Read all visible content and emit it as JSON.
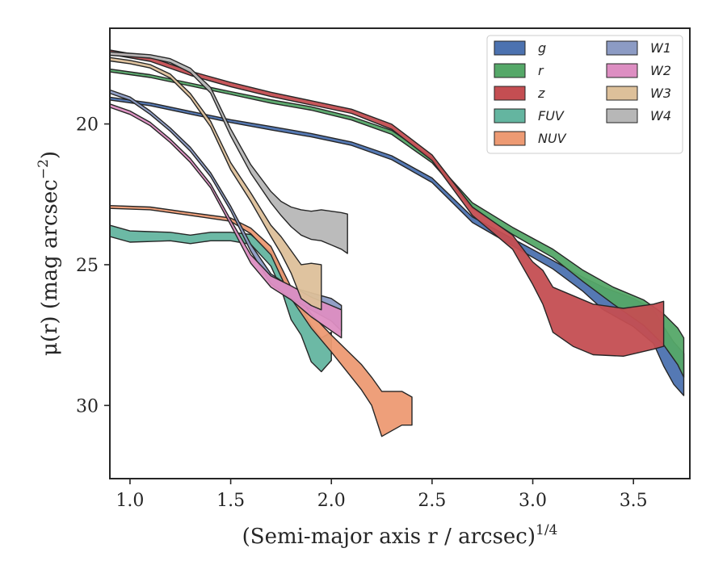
{
  "chart_data": {
    "type": "area",
    "xlabel": "(Semi-major axis r / arcsec)",
    "xlabel_sup": "1/4",
    "ylabel": "μ(r) (mag arcsec",
    "ylabel_sup": "−2",
    "ylabel_tail": ")",
    "xlim": [
      0.9,
      3.78
    ],
    "ylim": [
      32.6,
      16.6
    ],
    "y_inverted": true,
    "xticks": [
      1.0,
      1.5,
      2.0,
      2.5,
      3.0,
      3.5
    ],
    "xtick_labels": [
      "1.0",
      "1.5",
      "2.0",
      "2.5",
      "3.0",
      "3.5"
    ],
    "yticks": [
      20,
      25,
      30
    ],
    "ytick_labels": [
      "20",
      "25",
      "30"
    ],
    "grid": false,
    "legend_position": "top-right",
    "legend_columns": 2,
    "series": [
      {
        "name": "g",
        "color": "#4c72b0",
        "x": [
          0.9,
          1.1,
          1.3,
          1.5,
          1.7,
          1.9,
          2.1,
          2.3,
          2.5,
          2.7,
          2.9,
          3.1,
          3.25,
          3.35,
          3.5,
          3.6,
          3.65,
          3.7,
          3.75
        ],
        "y": [
          19.1,
          19.3,
          19.6,
          19.9,
          20.15,
          20.4,
          20.7,
          21.2,
          22.0,
          23.4,
          24.2,
          25.0,
          25.7,
          26.2,
          26.7,
          27.2,
          27.9,
          28.5,
          28.9
        ],
        "w": [
          0.1,
          0.1,
          0.1,
          0.1,
          0.12,
          0.12,
          0.12,
          0.14,
          0.16,
          0.2,
          0.25,
          0.3,
          0.5,
          0.8,
          1.0,
          1.2,
          1.4,
          1.5,
          1.5
        ]
      },
      {
        "name": "r",
        "color": "#55a868",
        "x": [
          0.9,
          1.1,
          1.3,
          1.5,
          1.7,
          1.9,
          2.1,
          2.3,
          2.5,
          2.7,
          2.9,
          3.1,
          3.25,
          3.4,
          3.55,
          3.65,
          3.72,
          3.75
        ],
        "y": [
          18.1,
          18.3,
          18.6,
          18.9,
          19.2,
          19.45,
          19.8,
          20.3,
          21.3,
          22.9,
          23.8,
          24.6,
          25.4,
          26.1,
          26.7,
          27.3,
          27.9,
          28.3
        ],
        "w": [
          0.1,
          0.1,
          0.1,
          0.1,
          0.12,
          0.12,
          0.12,
          0.14,
          0.16,
          0.2,
          0.25,
          0.3,
          0.4,
          0.6,
          0.9,
          1.1,
          1.3,
          1.4
        ]
      },
      {
        "name": "z",
        "color": "#c44e52",
        "x": [
          0.9,
          1.1,
          1.3,
          1.5,
          1.7,
          1.9,
          2.1,
          2.3,
          2.5,
          2.7,
          2.9,
          3.0,
          3.05,
          3.1,
          3.2,
          3.3,
          3.45,
          3.6,
          3.65
        ],
        "y": [
          17.45,
          17.7,
          18.2,
          18.6,
          18.95,
          19.25,
          19.55,
          20.1,
          21.2,
          23.1,
          24.2,
          25.3,
          25.8,
          26.6,
          27.0,
          27.3,
          27.4,
          27.2,
          27.1
        ],
        "w": [
          0.15,
          0.15,
          0.15,
          0.15,
          0.15,
          0.15,
          0.15,
          0.18,
          0.2,
          0.3,
          0.5,
          0.8,
          1.2,
          1.6,
          1.8,
          1.8,
          1.7,
          1.6,
          1.6
        ]
      },
      {
        "name": "FUV",
        "color": "#64b5a0",
        "x": [
          0.9,
          1.0,
          1.1,
          1.2,
          1.3,
          1.4,
          1.5,
          1.6,
          1.7,
          1.75,
          1.8,
          1.85,
          1.9,
          1.95,
          2.0
        ],
        "y": [
          23.8,
          24.0,
          24.0,
          24.0,
          24.1,
          24.0,
          24.0,
          24.1,
          24.8,
          25.5,
          26.5,
          27.0,
          27.8,
          28.2,
          27.9
        ],
        "w": [
          0.4,
          0.4,
          0.35,
          0.3,
          0.3,
          0.3,
          0.3,
          0.35,
          0.5,
          0.7,
          0.9,
          1.0,
          1.3,
          1.2,
          1.0
        ]
      },
      {
        "name": "NUV",
        "color": "#ed9a73",
        "x": [
          0.9,
          1.1,
          1.3,
          1.5,
          1.6,
          1.7,
          1.8,
          1.9,
          2.0,
          2.1,
          2.15,
          2.2,
          2.25,
          2.3,
          2.35,
          2.4
        ],
        "y": [
          22.95,
          23.0,
          23.2,
          23.4,
          23.8,
          24.5,
          26.0,
          27.0,
          27.8,
          28.6,
          29.0,
          29.5,
          30.3,
          30.2,
          30.1,
          30.2
        ],
        "w": [
          0.1,
          0.1,
          0.1,
          0.12,
          0.2,
          0.3,
          0.4,
          0.5,
          0.6,
          0.8,
          0.9,
          1.0,
          1.6,
          1.4,
          1.2,
          1.0
        ]
      },
      {
        "name": "W1",
        "color": "#8c9bc4",
        "x": [
          0.9,
          1.0,
          1.1,
          1.2,
          1.3,
          1.4,
          1.5,
          1.6,
          1.7,
          1.8,
          1.9,
          2.0,
          2.05
        ],
        "y": [
          18.85,
          19.1,
          19.6,
          20.2,
          20.9,
          21.8,
          23.0,
          24.4,
          25.5,
          26.0,
          26.3,
          26.6,
          26.9
        ],
        "w": [
          0.12,
          0.12,
          0.12,
          0.12,
          0.14,
          0.14,
          0.16,
          0.25,
          0.35,
          0.4,
          0.6,
          0.8,
          0.9
        ]
      },
      {
        "name": "W2",
        "color": "#dd8ec2",
        "x": [
          0.9,
          1.0,
          1.1,
          1.2,
          1.3,
          1.4,
          1.5,
          1.6,
          1.7,
          1.8,
          1.9,
          2.0,
          2.05
        ],
        "y": [
          19.35,
          19.6,
          20.0,
          20.6,
          21.3,
          22.2,
          23.5,
          24.8,
          25.6,
          26.0,
          26.5,
          26.9,
          27.1
        ],
        "w": [
          0.12,
          0.12,
          0.12,
          0.12,
          0.14,
          0.14,
          0.18,
          0.3,
          0.4,
          0.5,
          0.7,
          0.9,
          1.0
        ]
      },
      {
        "name": "W3",
        "color": "#ddc09a",
        "x": [
          0.9,
          1.0,
          1.1,
          1.2,
          1.3,
          1.4,
          1.5,
          1.6,
          1.65,
          1.7,
          1.75,
          1.8,
          1.85,
          1.9,
          1.95
        ],
        "y": [
          17.7,
          17.8,
          17.95,
          18.3,
          19.0,
          20.0,
          21.5,
          22.6,
          23.2,
          23.8,
          24.3,
          24.9,
          25.6,
          25.7,
          25.8
        ],
        "w": [
          0.12,
          0.12,
          0.12,
          0.14,
          0.16,
          0.2,
          0.25,
          0.3,
          0.35,
          0.4,
          0.6,
          0.8,
          1.2,
          1.5,
          1.6
        ]
      },
      {
        "name": "W4",
        "color": "#b7b7b7",
        "x": [
          0.9,
          1.0,
          1.1,
          1.2,
          1.3,
          1.4,
          1.5,
          1.6,
          1.7,
          1.75,
          1.8,
          1.85,
          1.9,
          1.95,
          2.0,
          2.05,
          2.08
        ],
        "y": [
          17.5,
          17.55,
          17.6,
          17.75,
          18.1,
          18.8,
          20.3,
          21.6,
          22.6,
          23.0,
          23.3,
          23.5,
          23.6,
          23.6,
          23.7,
          23.8,
          23.9
        ],
        "w": [
          0.12,
          0.12,
          0.12,
          0.14,
          0.16,
          0.2,
          0.25,
          0.3,
          0.4,
          0.5,
          0.7,
          0.9,
          1.0,
          1.1,
          1.2,
          1.3,
          1.4
        ]
      }
    ]
  }
}
